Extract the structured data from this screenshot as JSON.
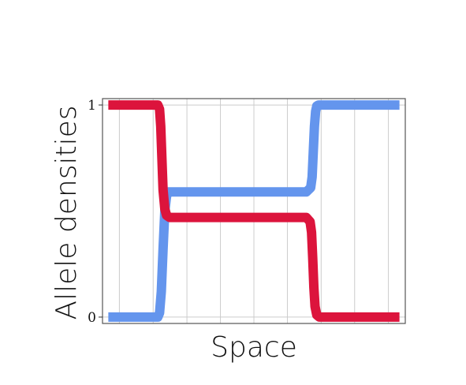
{
  "chart_data": {
    "type": "line",
    "xlabel": "Space",
    "ylabel": "Allele densities",
    "y_ticks": [
      {
        "value": 0,
        "label": "0"
      },
      {
        "value": 1,
        "label": "1"
      }
    ],
    "ylim": [
      -0.03,
      1.03
    ],
    "xlim": [
      -0.02,
      1.02
    ],
    "x_gridlines": [
      0.038,
      0.154,
      0.27,
      0.385,
      0.5,
      0.615,
      0.731,
      0.846,
      0.962
    ],
    "y_gridlines": [
      0,
      1
    ],
    "grid": true,
    "x_tick_labels_shown": false,
    "series": [
      {
        "color": "#6495ED",
        "x": [
          0.0,
          0.17,
          0.176,
          0.182,
          0.188,
          0.194,
          0.2,
          0.206,
          0.215,
          0.25,
          0.5,
          0.68,
          0.695,
          0.7,
          0.704,
          0.708,
          0.712,
          0.716,
          0.722,
          0.735,
          0.8,
          1.0
        ],
        "y": [
          0.0,
          0.0,
          0.02,
          0.12,
          0.32,
          0.5,
          0.57,
          0.59,
          0.59,
          0.59,
          0.59,
          0.59,
          0.61,
          0.66,
          0.78,
          0.9,
          0.97,
          0.995,
          1.0,
          1.0,
          1.0,
          1.0
        ]
      },
      {
        "color": "#DC143C",
        "x": [
          0.0,
          0.17,
          0.176,
          0.18,
          0.184,
          0.188,
          0.194,
          0.2,
          0.21,
          0.23,
          0.5,
          0.68,
          0.693,
          0.698,
          0.702,
          0.706,
          0.71,
          0.716,
          0.725,
          0.75,
          1.0
        ],
        "y": [
          1.0,
          1.0,
          0.98,
          0.9,
          0.75,
          0.6,
          0.51,
          0.48,
          0.47,
          0.47,
          0.47,
          0.47,
          0.45,
          0.4,
          0.28,
          0.14,
          0.05,
          0.01,
          0.0,
          0.0,
          0.0
        ]
      }
    ]
  }
}
